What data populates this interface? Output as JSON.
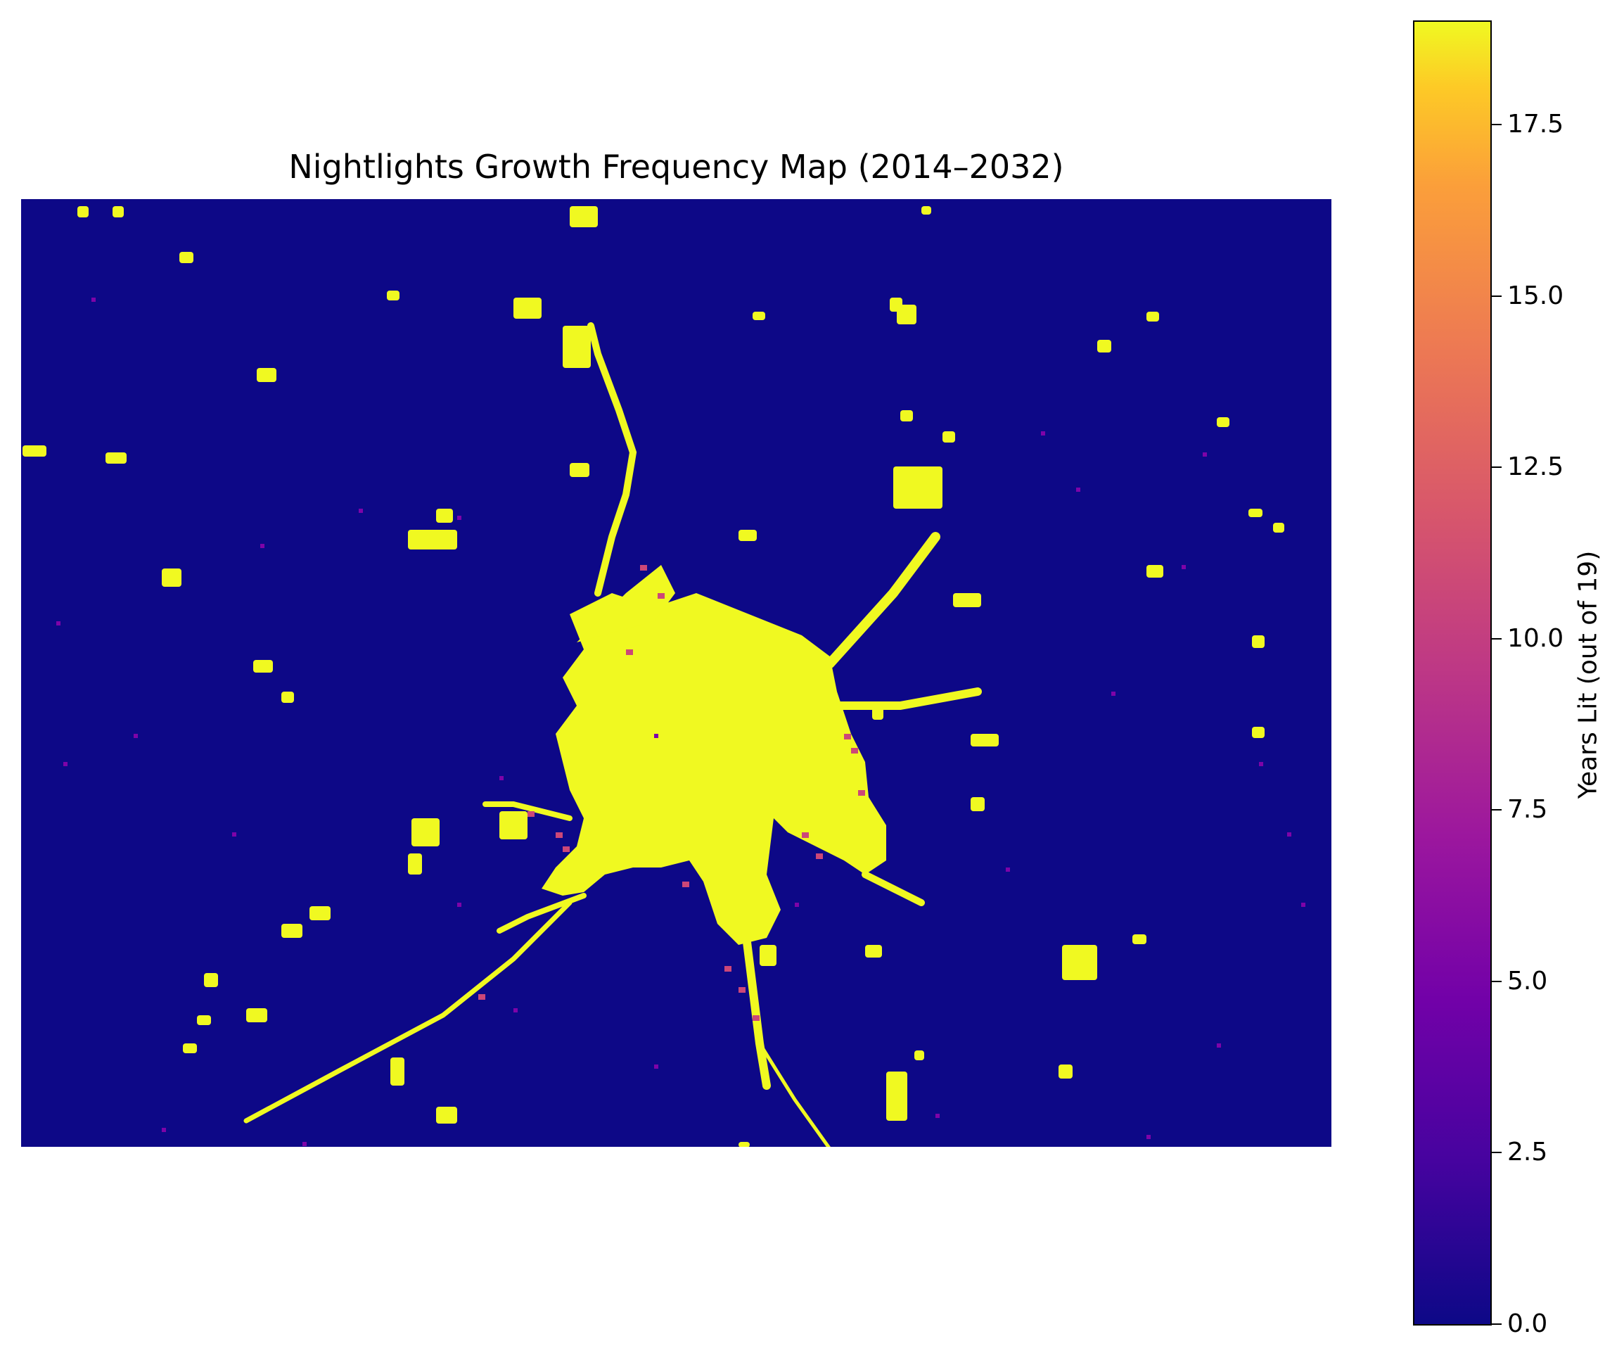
{
  "chart_data": {
    "type": "heatmap",
    "title": "Nightlights Growth Frequency Map (2014–2032)",
    "colormap": "plasma",
    "colorbar": {
      "label": "Years Lit (out of 19)",
      "range": [
        0,
        19
      ],
      "ticks": [
        "0.0",
        "2.5",
        "5.0",
        "7.5",
        "10.0",
        "12.5",
        "15.0",
        "17.5"
      ]
    },
    "axes_visible": false,
    "background_value": 0,
    "lit_value": 19,
    "colors": {
      "low": "#0d0887",
      "mid": "#cc4778",
      "high": "#f0f921"
    },
    "features": [
      {
        "kind": "central city core",
        "value": 19
      },
      {
        "kind": "radial road corridors",
        "value": 19
      },
      {
        "kind": "scattered towns",
        "value": 19
      },
      {
        "kind": "fringe pixels",
        "value": 6
      }
    ]
  }
}
